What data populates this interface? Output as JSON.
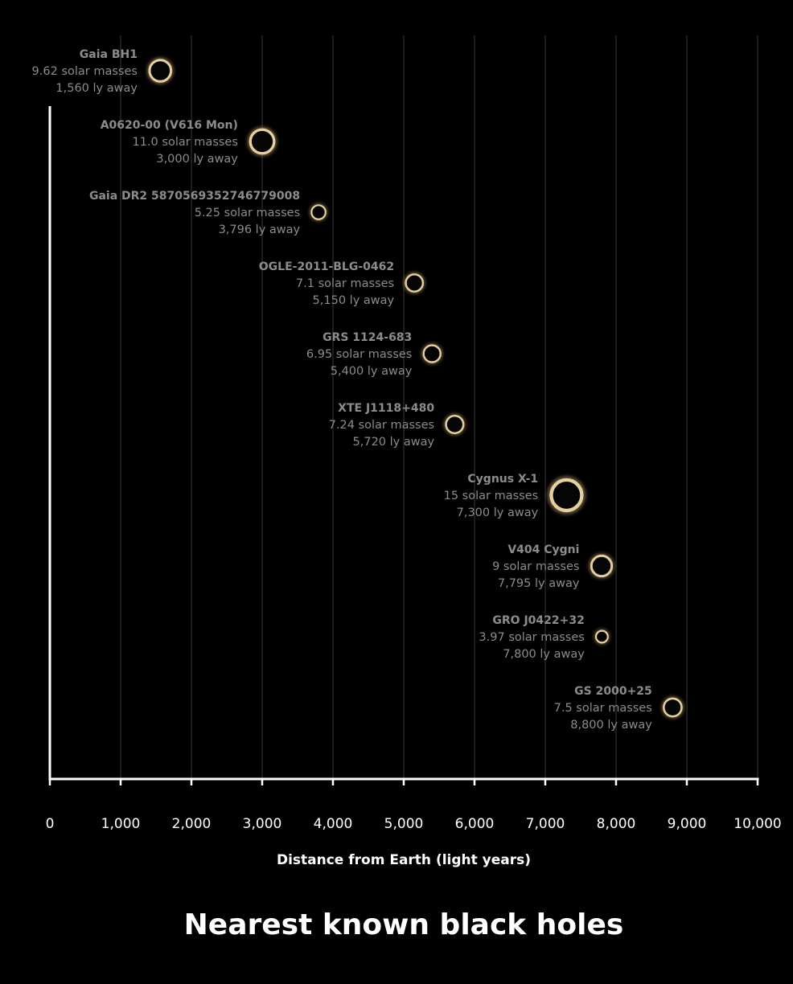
{
  "chart_data": {
    "type": "scatter",
    "title": "Nearest known black holes",
    "xlabel": "Distance from Earth (light years)",
    "ylabel": "",
    "xlim": [
      0,
      10000
    ],
    "xticks": [
      0,
      1000,
      2000,
      3000,
      4000,
      5000,
      6000,
      7000,
      8000,
      9000,
      10000
    ],
    "xtick_labels": [
      "0",
      "1,000",
      "2,000",
      "3,000",
      "4,000",
      "5,000",
      "6,000",
      "7,000",
      "8,000",
      "9,000",
      "10,000"
    ],
    "grid": "vertical",
    "points": [
      {
        "name": "Gaia BH1",
        "mass": 9.62,
        "distance": 1560,
        "mass_label": "9.62 solar masses",
        "distance_label": "1,560 ly away"
      },
      {
        "name": "A0620-00 (V616 Mon)",
        "mass": 11.0,
        "distance": 3000,
        "mass_label": "11.0 solar masses",
        "distance_label": "3,000 ly away"
      },
      {
        "name": "Gaia DR2 5870569352746779008",
        "mass": 5.25,
        "distance": 3796,
        "mass_label": "5.25 solar masses",
        "distance_label": "3,796 ly away"
      },
      {
        "name": "OGLE-2011-BLG-0462",
        "mass": 7.1,
        "distance": 5150,
        "mass_label": "7.1 solar masses",
        "distance_label": "5,150 ly away"
      },
      {
        "name": "GRS 1124-683",
        "mass": 6.95,
        "distance": 5400,
        "mass_label": "6.95 solar masses",
        "distance_label": "5,400 ly away"
      },
      {
        "name": "XTE J1118+480",
        "mass": 7.24,
        "distance": 5720,
        "mass_label": "7.24 solar masses",
        "distance_label": "5,720 ly away"
      },
      {
        "name": "Cygnus X-1",
        "mass": 15,
        "distance": 7300,
        "mass_label": "15 solar masses",
        "distance_label": "7,300 ly away"
      },
      {
        "name": "V404 Cygni",
        "mass": 9,
        "distance": 7795,
        "mass_label": "9 solar masses",
        "distance_label": "7,795 ly away"
      },
      {
        "name": "GRO J0422+32",
        "mass": 3.97,
        "distance": 7800,
        "mass_label": "3.97 solar masses",
        "distance_label": "7,800 ly away"
      },
      {
        "name": "GS 2000+25",
        "mass": 7.5,
        "distance": 8800,
        "mass_label": "7.5 solar masses",
        "distance_label": "8,800 ly away"
      }
    ]
  },
  "colors": {
    "background": "#000000",
    "grid": "#3a3a3a",
    "axis": "#ffffff",
    "label": "#8c8c8c",
    "ring": "#e6cfa0",
    "ring_glow": "#8a7550"
  }
}
